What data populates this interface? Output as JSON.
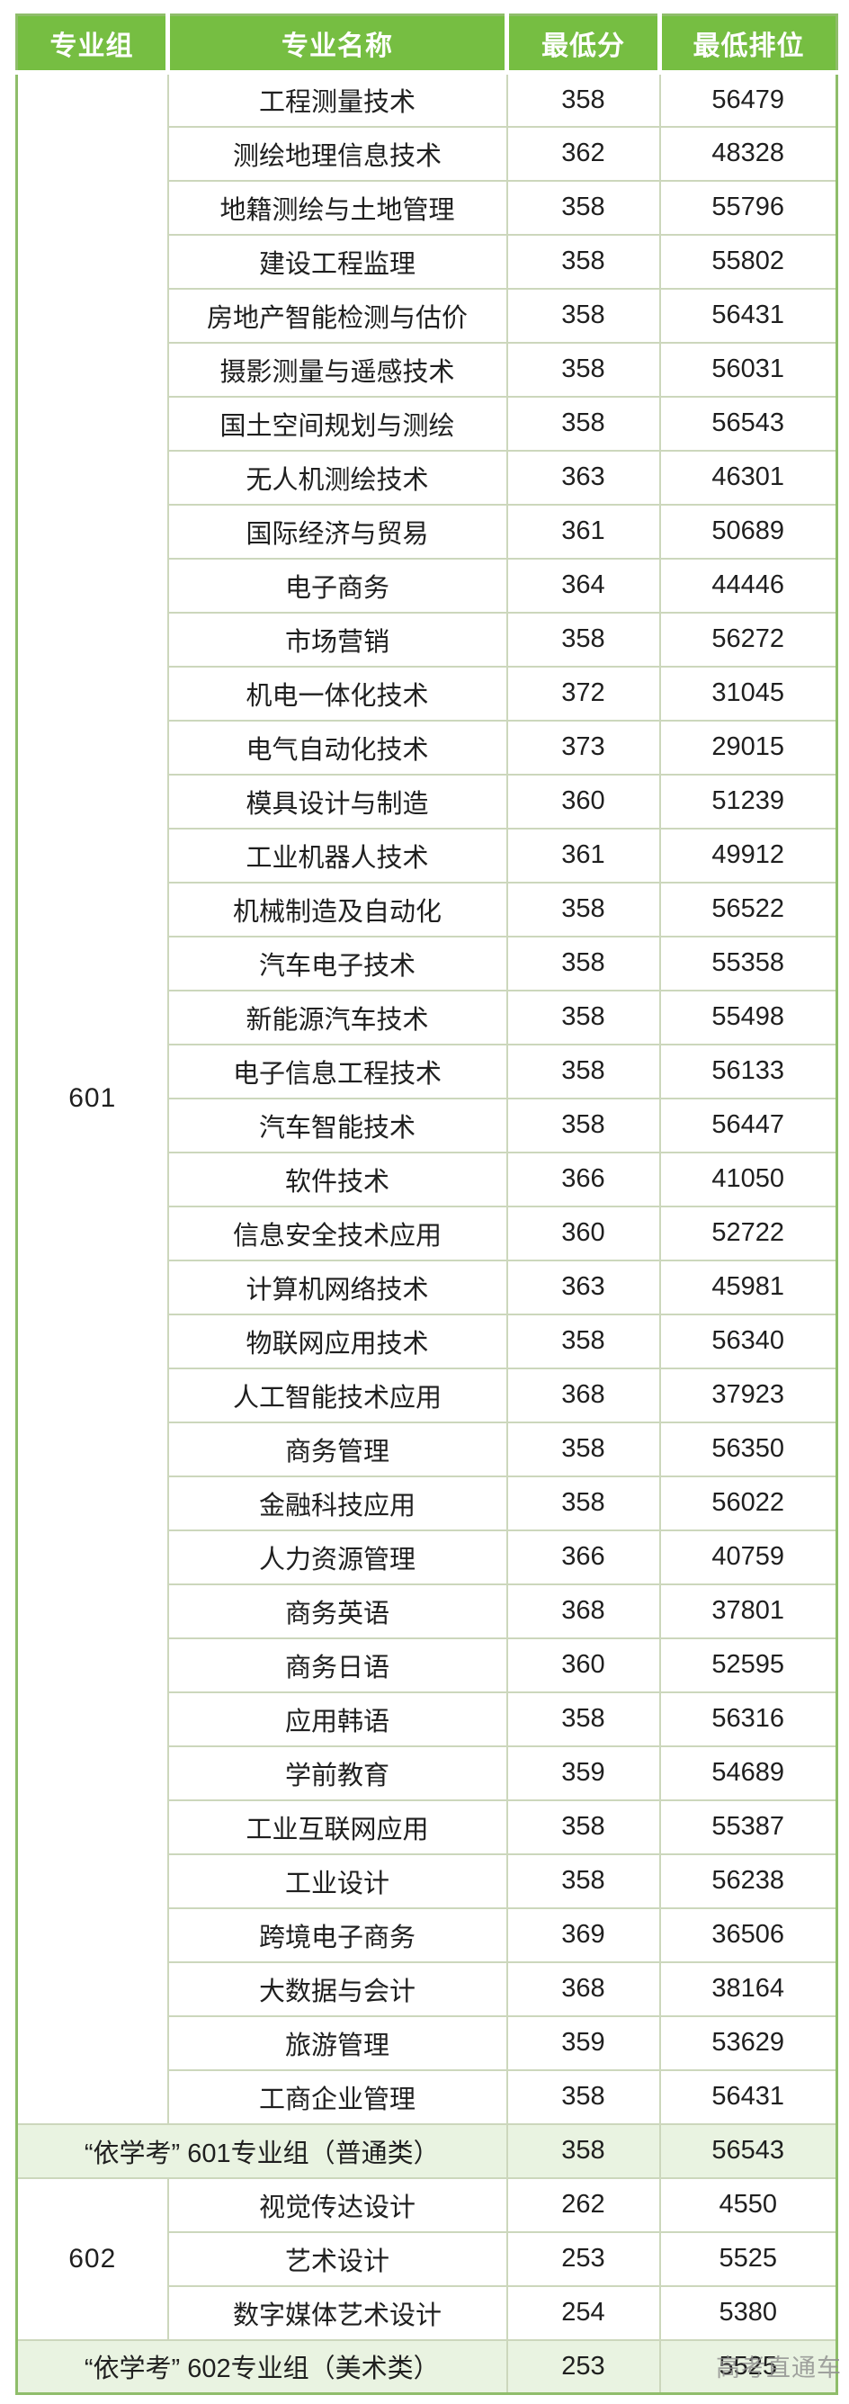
{
  "colors": {
    "header_green": "#76be42",
    "outer_border_green": "#8fbd6a",
    "inner_border_green": "#ccd7bc",
    "summary_row_bg": "#e9f3e1",
    "header_text": "#ffffff",
    "body_text": "#1f1f1f",
    "watermark_gray": "#8c8c8c"
  },
  "watermark": "高考直通车",
  "chart_data": {
    "type": "table",
    "columns": [
      "专业组",
      "专业名称",
      "最低分",
      "最低排位"
    ],
    "groups": [
      {
        "group": "601",
        "rows": [
          {
            "major": "工程测量技术",
            "score": "358",
            "rank": "56479"
          },
          {
            "major": "测绘地理信息技术",
            "score": "362",
            "rank": "48328"
          },
          {
            "major": "地籍测绘与土地管理",
            "score": "358",
            "rank": "55796"
          },
          {
            "major": "建设工程监理",
            "score": "358",
            "rank": "55802"
          },
          {
            "major": "房地产智能检测与估价",
            "score": "358",
            "rank": "56431"
          },
          {
            "major": "摄影测量与遥感技术",
            "score": "358",
            "rank": "56031"
          },
          {
            "major": "国土空间规划与测绘",
            "score": "358",
            "rank": "56543"
          },
          {
            "major": "无人机测绘技术",
            "score": "363",
            "rank": "46301"
          },
          {
            "major": "国际经济与贸易",
            "score": "361",
            "rank": "50689"
          },
          {
            "major": "电子商务",
            "score": "364",
            "rank": "44446"
          },
          {
            "major": "市场营销",
            "score": "358",
            "rank": "56272"
          },
          {
            "major": "机电一体化技术",
            "score": "372",
            "rank": "31045"
          },
          {
            "major": "电气自动化技术",
            "score": "373",
            "rank": "29015"
          },
          {
            "major": "模具设计与制造",
            "score": "360",
            "rank": "51239"
          },
          {
            "major": "工业机器人技术",
            "score": "361",
            "rank": "49912"
          },
          {
            "major": "机械制造及自动化",
            "score": "358",
            "rank": "56522"
          },
          {
            "major": "汽车电子技术",
            "score": "358",
            "rank": "55358"
          },
          {
            "major": "新能源汽车技术",
            "score": "358",
            "rank": "55498"
          },
          {
            "major": "电子信息工程技术",
            "score": "358",
            "rank": "56133"
          },
          {
            "major": "汽车智能技术",
            "score": "358",
            "rank": "56447"
          },
          {
            "major": "软件技术",
            "score": "366",
            "rank": "41050"
          },
          {
            "major": "信息安全技术应用",
            "score": "360",
            "rank": "52722"
          },
          {
            "major": "计算机网络技术",
            "score": "363",
            "rank": "45981"
          },
          {
            "major": "物联网应用技术",
            "score": "358",
            "rank": "56340"
          },
          {
            "major": "人工智能技术应用",
            "score": "368",
            "rank": "37923"
          },
          {
            "major": "商务管理",
            "score": "358",
            "rank": "56350"
          },
          {
            "major": "金融科技应用",
            "score": "358",
            "rank": "56022"
          },
          {
            "major": "人力资源管理",
            "score": "366",
            "rank": "40759"
          },
          {
            "major": "商务英语",
            "score": "368",
            "rank": "37801"
          },
          {
            "major": "商务日语",
            "score": "360",
            "rank": "52595"
          },
          {
            "major": "应用韩语",
            "score": "358",
            "rank": "56316"
          },
          {
            "major": "学前教育",
            "score": "359",
            "rank": "54689"
          },
          {
            "major": "工业互联网应用",
            "score": "358",
            "rank": "55387"
          },
          {
            "major": "工业设计",
            "score": "358",
            "rank": "56238"
          },
          {
            "major": "跨境电子商务",
            "score": "369",
            "rank": "36506"
          },
          {
            "major": "大数据与会计",
            "score": "368",
            "rank": "38164"
          },
          {
            "major": "旅游管理",
            "score": "359",
            "rank": "53629"
          },
          {
            "major": "工商企业管理",
            "score": "358",
            "rank": "56431"
          }
        ],
        "summary": {
          "label": "“依学考” 601专业组（普通类）",
          "score": "358",
          "rank": "56543"
        }
      },
      {
        "group": "602",
        "rows": [
          {
            "major": "视觉传达设计",
            "score": "262",
            "rank": "4550"
          },
          {
            "major": "艺术设计",
            "score": "253",
            "rank": "5525"
          },
          {
            "major": "数字媒体艺术设计",
            "score": "254",
            "rank": "5380"
          }
        ],
        "summary": {
          "label": "“依学考” 602专业组（美术类）",
          "score": "253",
          "rank": "5525"
        }
      }
    ]
  }
}
